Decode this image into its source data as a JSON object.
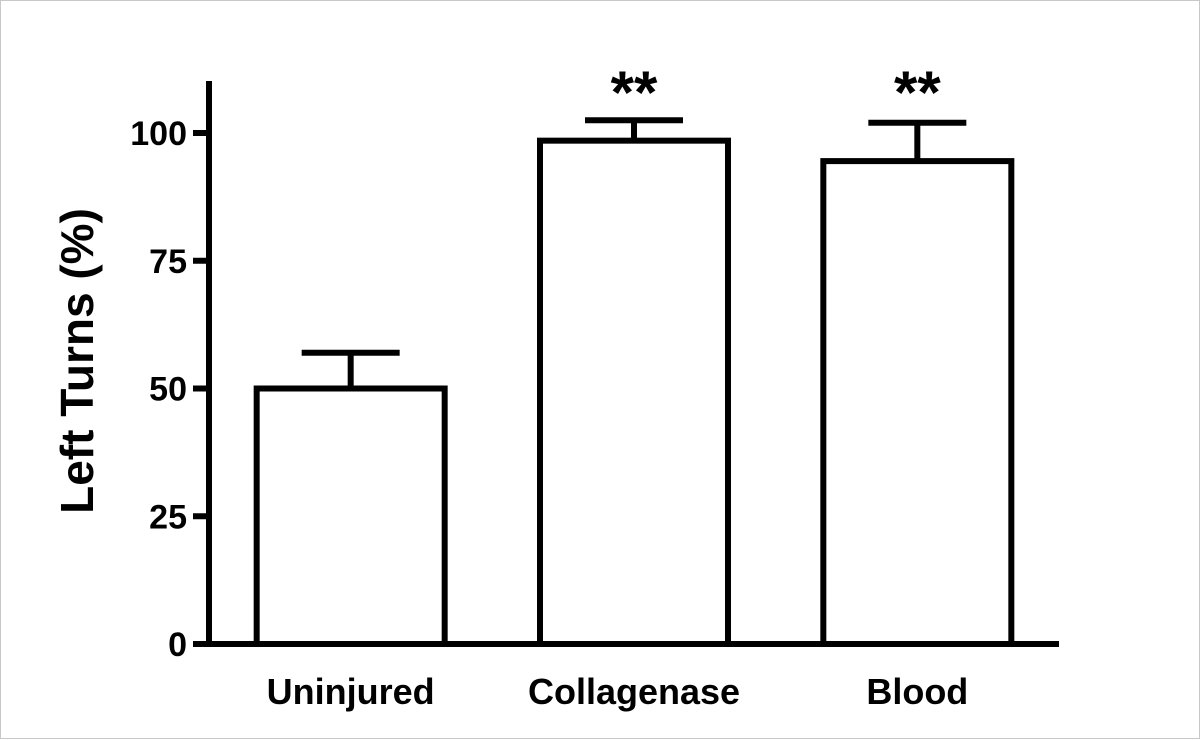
{
  "chart_data": {
    "type": "bar",
    "title": "",
    "xlabel": "",
    "ylabel": "Left Turns (%)",
    "categories": [
      "Uninjured",
      "Collagenase",
      "Blood"
    ],
    "values": [
      50,
      98.5,
      94.5
    ],
    "error_upper": [
      57,
      102.5,
      102
    ],
    "annotations": [
      "",
      "**",
      "**"
    ],
    "ylim": [
      0,
      110
    ],
    "yticks": [
      0,
      25,
      50,
      75,
      100
    ],
    "ytick_labels": [
      "0",
      "25",
      "50",
      "75",
      "100"
    ],
    "grid": false,
    "legend": "none",
    "bar_fill": "#ffffff",
    "bar_stroke": "#000000"
  }
}
